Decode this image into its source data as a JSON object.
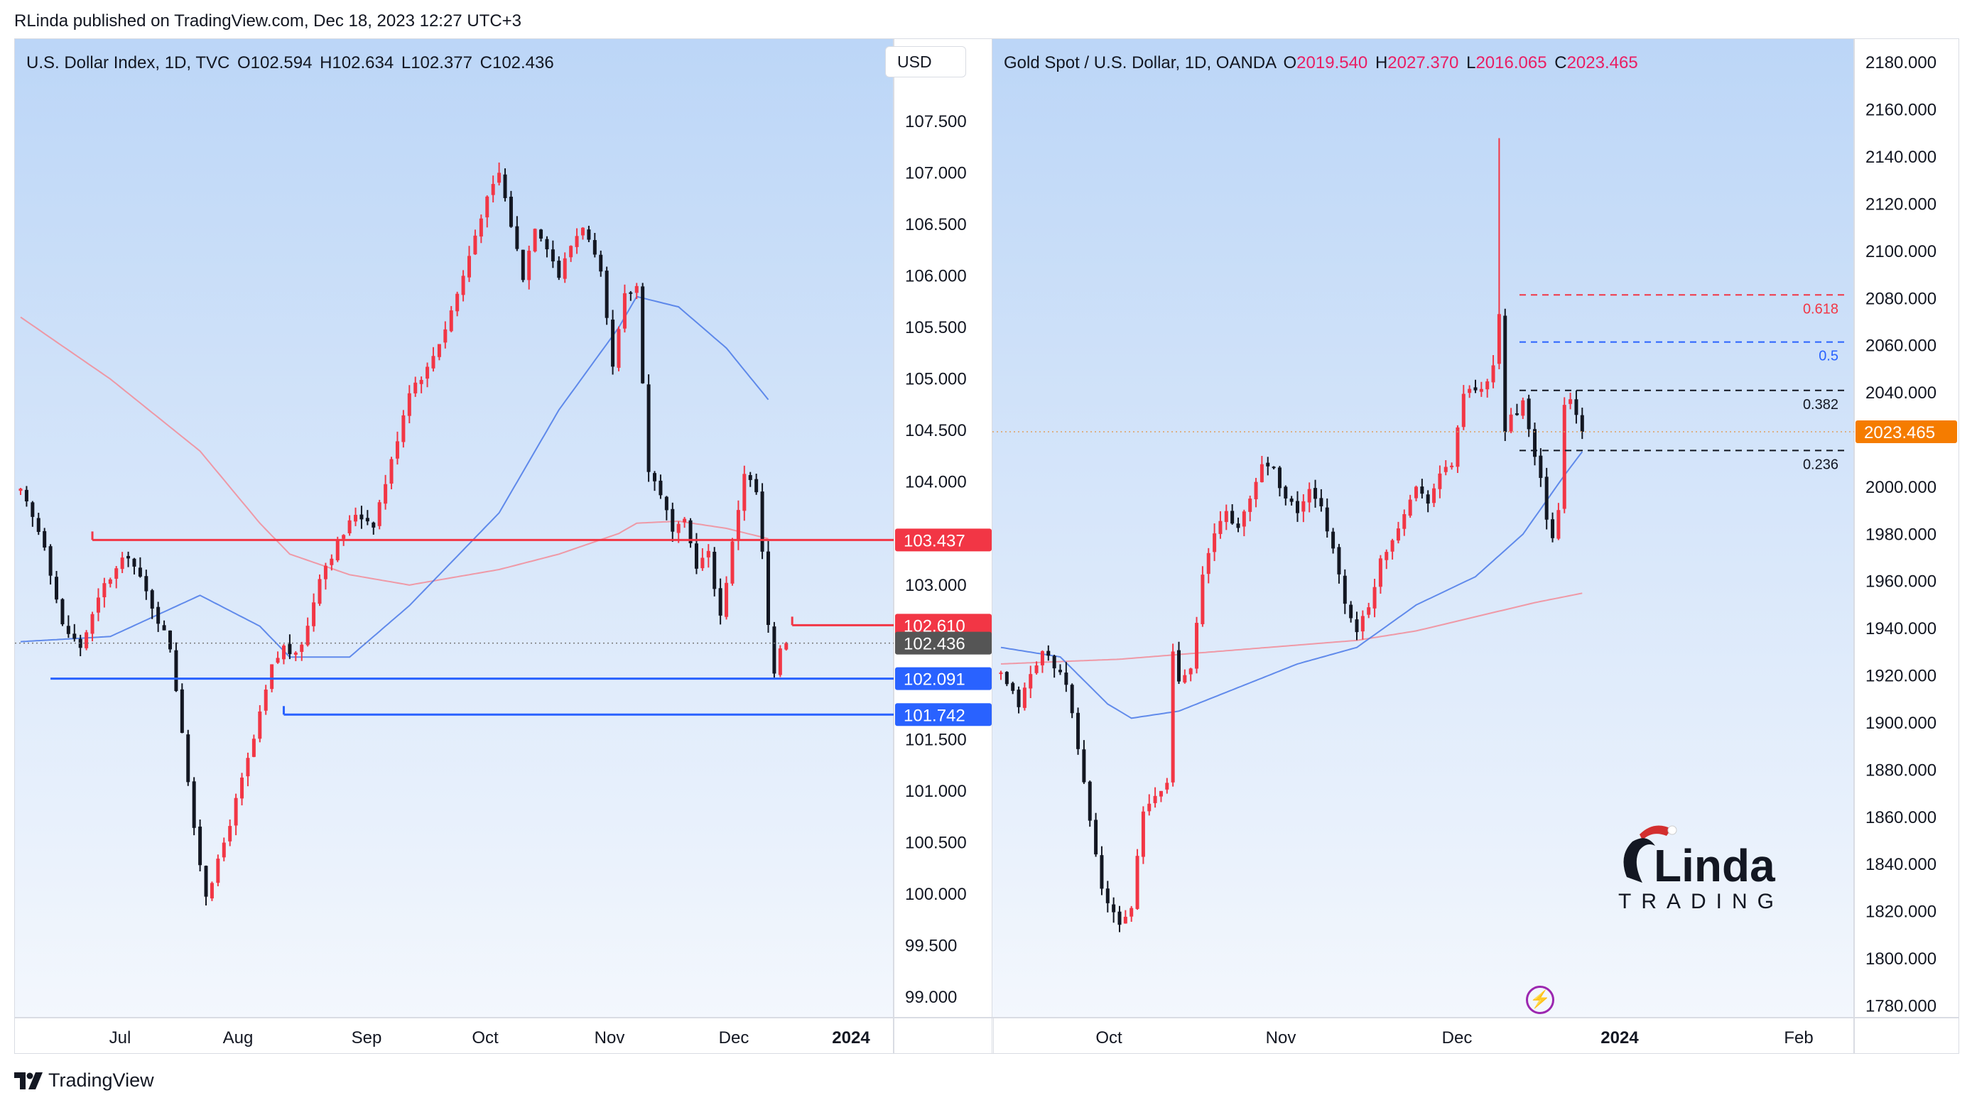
{
  "header": {
    "text": "RLinda published on TradingView.com, Dec 18, 2023 12:27 UTC+3"
  },
  "footer": {
    "brand": "TradingView"
  },
  "watermark": {
    "logo_text": "RLinda TRADING"
  },
  "dxy": {
    "legend": {
      "symbol": "U.S. Dollar Index, 1D, TVC",
      "o": "O102.594",
      "h": "H102.634",
      "l": "L102.377",
      "c": "C102.436"
    },
    "currency_button": "USD"
  },
  "gold": {
    "legend": {
      "symbol": "Gold Spot / U.S. Dollar, 1D, OANDA",
      "o_label": "O",
      "o": "2019.540",
      "h_label": "H",
      "h": "2027.370",
      "l_label": "L",
      "l": "2016.065",
      "c_label": "C",
      "c": "2023.465"
    },
    "alert_icon": "lightning-icon"
  },
  "colors": {
    "up": "#f23645",
    "down": "#131722",
    "ma50": "#4a79e8",
    "ma200": "#f28b96",
    "red_level": "#f23645",
    "blue_level": "#2962ff",
    "gold_price": "#f57c00",
    "last_price": "#555555",
    "legend_red": "#e91e63"
  },
  "chart_data": [
    {
      "type": "candlestick",
      "title": "U.S. Dollar Index, 1D, TVC",
      "ylim": [
        98.8,
        108.3
      ],
      "y_ticks": [
        "107.500",
        "107.000",
        "106.500",
        "106.000",
        "105.500",
        "105.000",
        "104.500",
        "104.000",
        "103.000",
        "101.500",
        "101.000",
        "100.500",
        "100.000",
        "99.500",
        "99.000"
      ],
      "x_ticks": [
        "Jul",
        "Aug",
        "Sep",
        "Oct",
        "Nov",
        "Dec",
        "2024"
      ],
      "price_labels": [
        {
          "name": "resistance-103437",
          "value": 103.437,
          "text": "103.437",
          "color": "#f23645"
        },
        {
          "name": "resistance-102610",
          "value": 102.61,
          "text": "102.610",
          "color": "#f23645"
        },
        {
          "name": "last-price",
          "value": 102.436,
          "text": "102.436",
          "color": "#555555"
        },
        {
          "name": "support-102091",
          "value": 102.091,
          "text": "102.091",
          "color": "#2962ff"
        },
        {
          "name": "support-101742",
          "value": 101.742,
          "text": "101.742",
          "color": "#2962ff"
        }
      ],
      "horizontal_levels": [
        {
          "value": 103.437,
          "color": "#f23645",
          "from_index": 12
        },
        {
          "value": 102.61,
          "color": "#f23645",
          "from_index": 129
        },
        {
          "value": 102.091,
          "color": "#2962ff",
          "from_index": 5
        },
        {
          "value": 101.742,
          "color": "#2962ff",
          "from_index": 44
        }
      ],
      "series_keypoints": [
        [
          0,
          103.9
        ],
        [
          4,
          103.4
        ],
        [
          7,
          102.6
        ],
        [
          10,
          102.4
        ],
        [
          14,
          103.0
        ],
        [
          18,
          103.3
        ],
        [
          22,
          102.8
        ],
        [
          25,
          102.4
        ],
        [
          27,
          101.6
        ],
        [
          29,
          100.6
        ],
        [
          31,
          100.0
        ],
        [
          33,
          100.3
        ],
        [
          36,
          100.9
        ],
        [
          39,
          101.5
        ],
        [
          42,
          102.2
        ],
        [
          44,
          102.4
        ],
        [
          46,
          102.3
        ],
        [
          48,
          102.6
        ],
        [
          50,
          103.1
        ],
        [
          53,
          103.4
        ],
        [
          56,
          103.7
        ],
        [
          59,
          103.6
        ],
        [
          62,
          104.2
        ],
        [
          65,
          104.9
        ],
        [
          68,
          105.1
        ],
        [
          71,
          105.5
        ],
        [
          74,
          106.0
        ],
        [
          77,
          106.6
        ],
        [
          80,
          107.0
        ],
        [
          82,
          106.5
        ],
        [
          84,
          106.0
        ],
        [
          86,
          106.5
        ],
        [
          88,
          106.3
        ],
        [
          90,
          106.0
        ],
        [
          92,
          106.3
        ],
        [
          94,
          106.5
        ],
        [
          97,
          106.0
        ],
        [
          99,
          105.1
        ],
        [
          101,
          105.8
        ],
        [
          103,
          105.9
        ],
        [
          105,
          104.1
        ],
        [
          107,
          103.9
        ],
        [
          109,
          103.5
        ],
        [
          111,
          103.6
        ],
        [
          113,
          103.2
        ],
        [
          115,
          103.3
        ],
        [
          117,
          102.7
        ],
        [
          119,
          103.4
        ],
        [
          121,
          104.1
        ],
        [
          123,
          103.9
        ],
        [
          124,
          103.3
        ],
        [
          125,
          102.6
        ],
        [
          126,
          102.1
        ],
        [
          127,
          102.4
        ],
        [
          128,
          102.436
        ]
      ],
      "ma50": [
        [
          0,
          102.45
        ],
        [
          15,
          102.5
        ],
        [
          30,
          102.9
        ],
        [
          40,
          102.6
        ],
        [
          45,
          102.3
        ],
        [
          55,
          102.3
        ],
        [
          65,
          102.8
        ],
        [
          80,
          103.7
        ],
        [
          90,
          104.7
        ],
        [
          100,
          105.5
        ],
        [
          103,
          105.8
        ],
        [
          110,
          105.7
        ],
        [
          118,
          105.3
        ],
        [
          125,
          104.8
        ]
      ],
      "ma200": [
        [
          0,
          105.6
        ],
        [
          15,
          105.0
        ],
        [
          30,
          104.3
        ],
        [
          40,
          103.6
        ],
        [
          45,
          103.3
        ],
        [
          55,
          103.1
        ],
        [
          65,
          103.0
        ],
        [
          80,
          103.15
        ],
        [
          90,
          103.3
        ],
        [
          100,
          103.5
        ],
        [
          103,
          103.6
        ],
        [
          110,
          103.62
        ],
        [
          118,
          103.55
        ],
        [
          125,
          103.45
        ]
      ]
    },
    {
      "type": "candlestick",
      "title": "Gold Spot / U.S. Dollar, 1D, OANDA",
      "ylim": [
        1775,
        2190
      ],
      "y_ticks": [
        "2180.000",
        "2160.000",
        "2140.000",
        "2120.000",
        "2100.000",
        "2080.000",
        "2060.000",
        "2040.000",
        "2000.000",
        "1980.000",
        "1960.000",
        "1940.000",
        "1920.000",
        "1900.000",
        "1880.000",
        "1860.000",
        "1840.000",
        "1820.000",
        "1800.000",
        "1780.000"
      ],
      "x_ticks": [
        "Oct",
        "Nov",
        "Dec",
        "2024",
        "Feb"
      ],
      "price_labels": [
        {
          "name": "gold-last-price",
          "value": 2023.465,
          "text": "2023.465",
          "color": "#f57c00"
        }
      ],
      "fib_levels": [
        {
          "label": "0.618",
          "value": 2081.5,
          "color": "#f23645"
        },
        {
          "label": "0.5",
          "value": 2061.5,
          "color": "#2962ff"
        },
        {
          "label": "0.382",
          "value": 2041.0,
          "color": "#131722"
        },
        {
          "label": "0.236",
          "value": 2015.5,
          "color": "#131722"
        }
      ],
      "series_keypoints": [
        [
          0,
          1920
        ],
        [
          3,
          1908
        ],
        [
          5,
          1920
        ],
        [
          7,
          1930
        ],
        [
          9,
          1925
        ],
        [
          11,
          1915
        ],
        [
          13,
          1890
        ],
        [
          14,
          1875
        ],
        [
          15,
          1858
        ],
        [
          16,
          1845
        ],
        [
          17,
          1830
        ],
        [
          18,
          1822
        ],
        [
          20,
          1815
        ],
        [
          22,
          1822
        ],
        [
          24,
          1862
        ],
        [
          26,
          1868
        ],
        [
          28,
          1875
        ],
        [
          29,
          1930
        ],
        [
          30,
          1918
        ],
        [
          32,
          1925
        ],
        [
          34,
          1962
        ],
        [
          36,
          1980
        ],
        [
          38,
          1990
        ],
        [
          40,
          1982
        ],
        [
          42,
          1995
        ],
        [
          44,
          2010
        ],
        [
          46,
          2008
        ],
        [
          48,
          1995
        ],
        [
          50,
          1990
        ],
        [
          52,
          1998
        ],
        [
          54,
          1990
        ],
        [
          56,
          1975
        ],
        [
          58,
          1950
        ],
        [
          60,
          1940
        ],
        [
          62,
          1948
        ],
        [
          64,
          1970
        ],
        [
          66,
          1978
        ],
        [
          68,
          1990
        ],
        [
          70,
          2000
        ],
        [
          72,
          1995
        ],
        [
          74,
          2005
        ],
        [
          76,
          2010
        ],
        [
          78,
          2040
        ],
        [
          80,
          2040
        ],
        [
          82,
          2043
        ],
        [
          83,
          2050
        ],
        [
          84,
          2072
        ],
        [
          85,
          2025
        ],
        [
          86,
          2030
        ],
        [
          88,
          2035
        ],
        [
          90,
          2012
        ],
        [
          91,
          2005
        ],
        [
          92,
          1985
        ],
        [
          93,
          1978
        ],
        [
          94,
          1990
        ],
        [
          95,
          2035
        ],
        [
          96,
          2038
        ],
        [
          97,
          2030
        ],
        [
          98,
          2023.465
        ]
      ],
      "ma50": [
        [
          0,
          1932
        ],
        [
          10,
          1928
        ],
        [
          18,
          1908
        ],
        [
          22,
          1902
        ],
        [
          30,
          1905
        ],
        [
          40,
          1915
        ],
        [
          50,
          1925
        ],
        [
          60,
          1932
        ],
        [
          70,
          1950
        ],
        [
          80,
          1962
        ],
        [
          88,
          1980
        ],
        [
          95,
          2005
        ],
        [
          98,
          2015
        ]
      ],
      "ma200": [
        [
          0,
          1925
        ],
        [
          20,
          1927
        ],
        [
          40,
          1931
        ],
        [
          60,
          1935
        ],
        [
          70,
          1939
        ],
        [
          80,
          1945
        ],
        [
          90,
          1951
        ],
        [
          98,
          1955
        ]
      ]
    }
  ]
}
